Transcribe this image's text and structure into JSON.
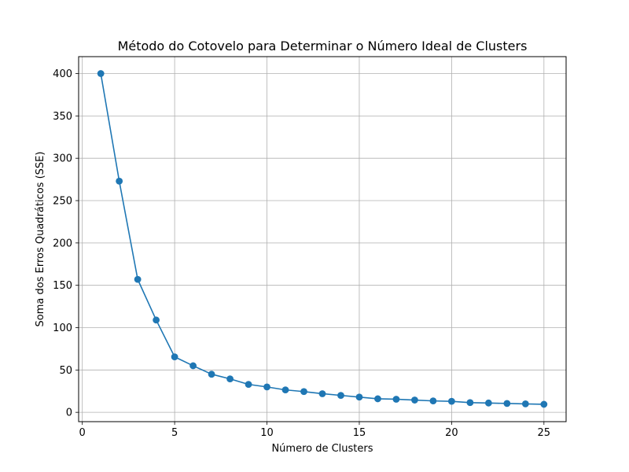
{
  "chart_data": {
    "type": "line",
    "title": "Método do Cotovelo para Determinar o Número Ideal de Clusters",
    "xlabel": "Número de Clusters",
    "ylabel": "Soma dos Erros Quadráticos (SSE)",
    "xlim": [
      -0.2,
      26.2
    ],
    "ylim": [
      -11,
      420
    ],
    "xticks": [
      0,
      5,
      10,
      15,
      20,
      25
    ],
    "yticks": [
      0,
      50,
      100,
      150,
      200,
      250,
      300,
      350,
      400
    ],
    "xtick_labels": [
      "0",
      "5",
      "10",
      "15",
      "20",
      "25"
    ],
    "ytick_labels": [
      "0",
      "50",
      "100",
      "150",
      "200",
      "250",
      "300",
      "350",
      "400"
    ],
    "grid": true,
    "marker": "circle",
    "color": "#1f77b4",
    "series": [
      {
        "x": [
          1,
          2,
          3,
          4,
          5,
          6,
          7,
          8,
          9,
          10,
          11,
          12,
          13,
          14,
          15,
          16,
          17,
          18,
          19,
          20,
          21,
          22,
          23,
          24,
          25
        ],
        "y": [
          400,
          273,
          157,
          109,
          65.5,
          55,
          45,
          39.5,
          33,
          30,
          26.5,
          24.5,
          22,
          20,
          18,
          16,
          15.5,
          14.5,
          13.5,
          13,
          11.5,
          11,
          10.5,
          10,
          9.5
        ]
      }
    ]
  }
}
